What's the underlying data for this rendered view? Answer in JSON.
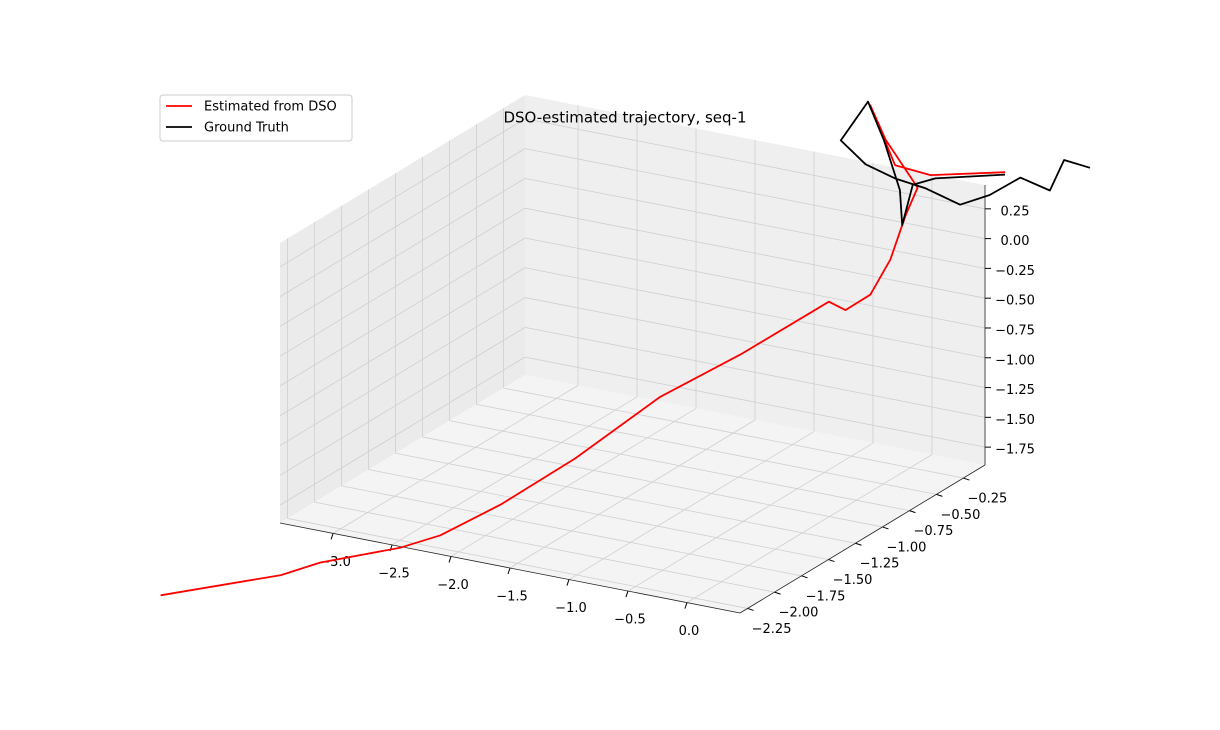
{
  "chart_data": {
    "type": "line3d",
    "title": "DSO-estimated trajectory, seq-1",
    "series": [
      {
        "name": "Estimated from DSO",
        "color": "#ff0000",
        "x": [
          -3.84,
          -3.03,
          -2.8,
          -2.33,
          -2.09,
          -1.79,
          -1.36,
          -0.85,
          -0.38,
          0.17,
          0.2,
          0.31,
          0.37,
          0.4,
          0.4,
          0.33,
          0.31,
          0.31,
          0.4,
          0.62
        ],
        "y": [
          -3.0,
          -2.77,
          -2.66,
          -2.43,
          -2.32,
          -2.09,
          -1.87,
          -1.64,
          -1.41,
          -1.19,
          -1.07,
          -0.96,
          -0.84,
          -0.73,
          -0.62,
          -0.84,
          -0.96,
          -0.73,
          -0.5,
          -0.05
        ],
        "z": [
          -2.21,
          -2.01,
          -1.92,
          -1.83,
          -1.74,
          -1.55,
          -1.2,
          -0.71,
          -0.39,
          0.04,
          -0.09,
          0.0,
          0.24,
          0.56,
          0.73,
          1.24,
          1.59,
          0.96,
          0.77,
          0.59
        ]
      },
      {
        "name": "Ground Truth",
        "color": "#000000",
        "x": [
          1.13,
          1.02,
          1.0,
          0.85,
          0.7,
          0.55,
          0.36,
          0.21,
          0.06,
          -0.05,
          0.08,
          0.18,
          0.25,
          0.37,
          0.25,
          0.34,
          0.72
        ],
        "y": [
          0.18,
          0.06,
          -0.05,
          -0.16,
          -0.28,
          -0.39,
          -0.5,
          -0.62,
          -0.73,
          -0.84,
          -0.73,
          -0.69,
          -0.62,
          -0.73,
          -0.5,
          -0.39,
          -0.16
        ],
        "z": [
          0.6,
          0.71,
          0.51,
          0.65,
          0.54,
          0.49,
          0.65,
          0.77,
          0.92,
          1.16,
          1.45,
          1.12,
          0.68,
          0.47,
          0.66,
          0.67,
          0.65
        ]
      }
    ],
    "xlim": [
      -3.45,
      0.45
    ],
    "ylim": [
      -2.32,
      -0.05
    ],
    "zlim": [
      -1.9,
      0.45
    ],
    "xticks": [
      {
        "value": -3,
        "label": "−3.0"
      },
      {
        "value": -2.5,
        "label": "−2.5"
      },
      {
        "value": -2,
        "label": "−2.0"
      },
      {
        "value": -1.5,
        "label": "−1.5"
      },
      {
        "value": -1,
        "label": "−1.0"
      },
      {
        "value": -0.5,
        "label": "−0.5"
      },
      {
        "value": 0,
        "label": "0.0"
      }
    ],
    "yticks": [
      {
        "value": -2.25,
        "label": "−2.25"
      },
      {
        "value": -2,
        "label": "−2.00"
      },
      {
        "value": -1.75,
        "label": "−1.75"
      },
      {
        "value": -1.5,
        "label": "−1.50"
      },
      {
        "value": -1.25,
        "label": "−1.25"
      },
      {
        "value": -1,
        "label": "−1.00"
      },
      {
        "value": -0.75,
        "label": "−0.75"
      },
      {
        "value": -0.5,
        "label": "−0.50"
      },
      {
        "value": -0.25,
        "label": "−0.25"
      }
    ],
    "zticks": [
      {
        "value": -1.75,
        "label": "−1.75"
      },
      {
        "value": -1.5,
        "label": "−1.50"
      },
      {
        "value": -1.25,
        "label": "−1.25"
      },
      {
        "value": -1,
        "label": "−1.00"
      },
      {
        "value": -0.75,
        "label": "−0.75"
      },
      {
        "value": -0.5,
        "label": "−0.50"
      },
      {
        "value": -0.25,
        "label": "−0.25"
      },
      {
        "value": 0,
        "label": "0.00"
      },
      0.25
    ],
    "grid": true,
    "legend": "upper left"
  }
}
